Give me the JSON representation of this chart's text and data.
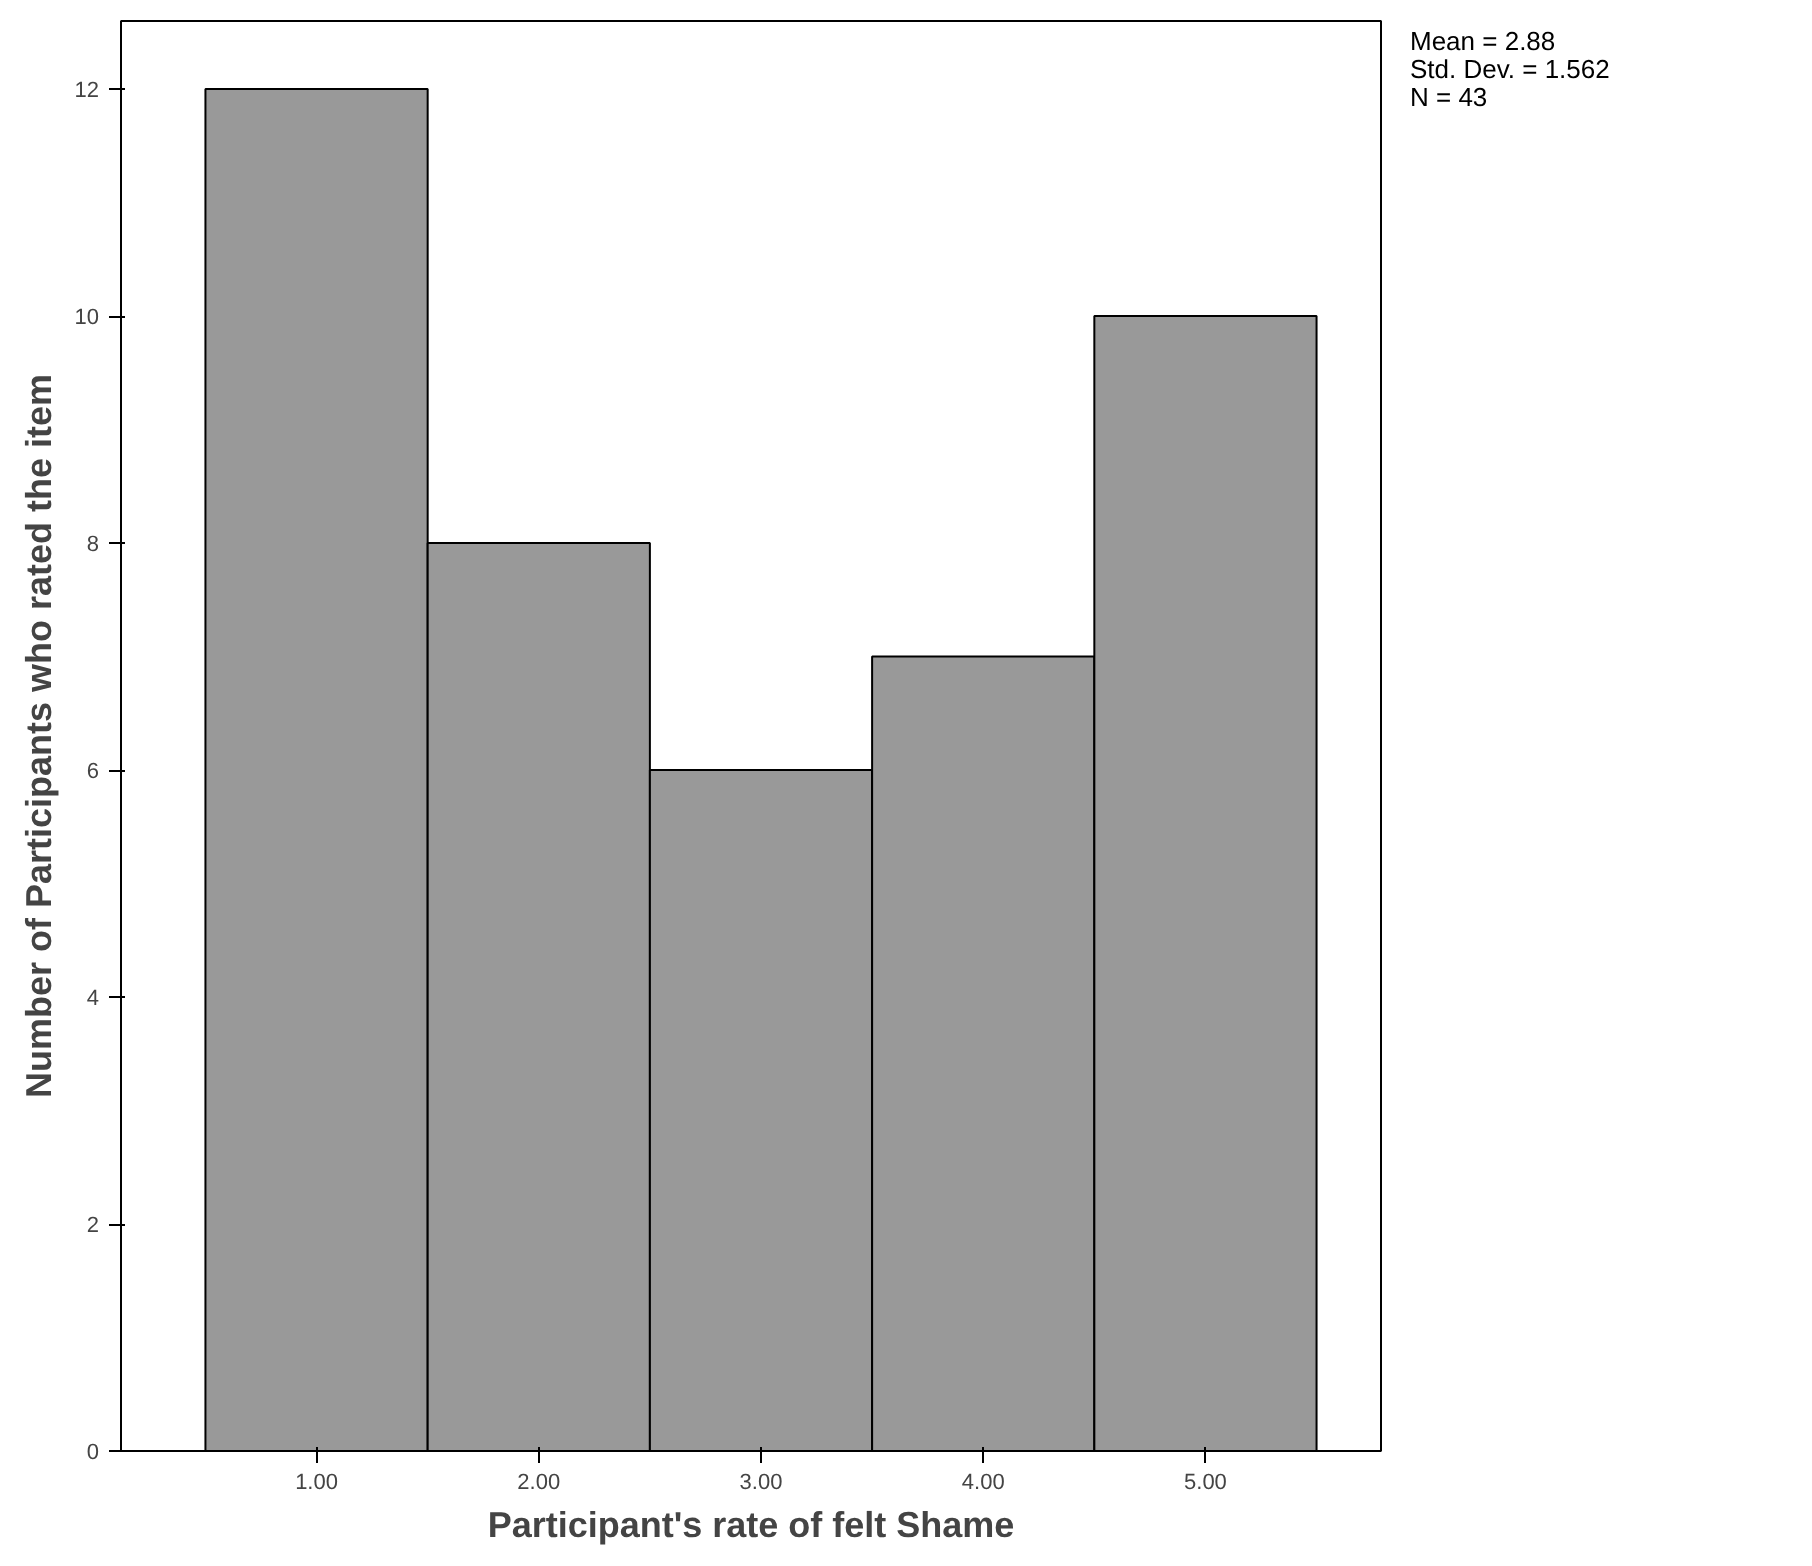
{
  "chart_data": {
    "type": "histogram",
    "xlabel": "Participant's rate of felt Shame",
    "ylabel": "Number of Participants who rated the item",
    "bins": [
      0.5,
      1.5,
      2.5,
      3.5,
      4.5,
      5.5
    ],
    "values": [
      12,
      8,
      6,
      7,
      10
    ],
    "color": "#999999",
    "xlim": [
      0.12,
      5.79
    ],
    "ylim": [
      0,
      12.6
    ],
    "xticks": [
      {
        "value": 1,
        "label": "1.00"
      },
      {
        "value": 2,
        "label": "2.00"
      },
      {
        "value": 3,
        "label": "3.00"
      },
      {
        "value": 4,
        "label": "4.00"
      },
      {
        "value": 5,
        "label": "5.00"
      }
    ],
    "yticks": [
      0,
      2,
      4,
      6,
      8,
      10,
      12
    ],
    "grid": false,
    "annotations": [
      "Mean = 2.88",
      "Std. Dev. = 1.562",
      "N = 43"
    ]
  }
}
